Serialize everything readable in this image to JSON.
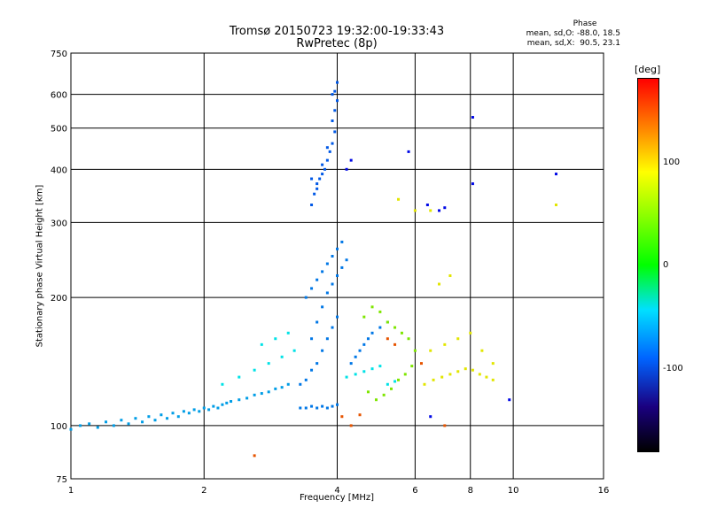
{
  "chart_data": {
    "type": "scatter",
    "title": "Tromsø 20150723 19:32:00-19:33:43",
    "subtitle": "RwPretec (8p)",
    "xlabel": "Frequency [MHz]",
    "ylabel": "Stationary phase Virtual Height [km]",
    "x_scale": "log",
    "y_scale": "log",
    "xlim": [
      1,
      16
    ],
    "ylim": [
      75,
      750
    ],
    "x_ticks": [
      "1",
      "2",
      "4",
      "6",
      "8",
      "10",
      "16"
    ],
    "x_tick_values": [
      1,
      2,
      4,
      6,
      8,
      10,
      16
    ],
    "y_ticks": [
      "75",
      "100",
      "200",
      "300",
      "400",
      "500",
      "600",
      "750"
    ],
    "y_tick_values": [
      75,
      100,
      200,
      300,
      400,
      500,
      600,
      750
    ],
    "grid": true,
    "colorbar": {
      "label": "[deg]",
      "ticks": [
        "100",
        "0",
        "-100"
      ],
      "range": [
        -180,
        180
      ]
    },
    "phase_stats": {
      "title": "Phase",
      "line1": "mean, sd,O: -88.0, 18.5",
      "line2": "mean, sd,X:  90.5, 23.1"
    },
    "series": [
      {
        "phase": -95,
        "points": [
          [
            1.0,
            98
          ],
          [
            1.05,
            100
          ],
          [
            1.1,
            101
          ],
          [
            1.15,
            99
          ],
          [
            1.2,
            102
          ],
          [
            1.25,
            100
          ],
          [
            1.3,
            103
          ],
          [
            1.35,
            101
          ],
          [
            1.4,
            104
          ],
          [
            1.45,
            102
          ],
          [
            1.5,
            105
          ],
          [
            1.55,
            103
          ],
          [
            1.6,
            106
          ],
          [
            1.65,
            104
          ],
          [
            1.7,
            107
          ],
          [
            1.75,
            105
          ],
          [
            1.8,
            108
          ],
          [
            1.85,
            107
          ],
          [
            1.9,
            109
          ],
          [
            1.95,
            108
          ],
          [
            2.0,
            110
          ],
          [
            2.05,
            109
          ],
          [
            2.1,
            111
          ],
          [
            2.15,
            110
          ],
          [
            2.2,
            112
          ],
          [
            2.25,
            113
          ],
          [
            2.3,
            114
          ],
          [
            2.4,
            115
          ],
          [
            2.5,
            116
          ],
          [
            2.6,
            118
          ],
          [
            2.7,
            119
          ],
          [
            2.8,
            120
          ],
          [
            2.9,
            122
          ],
          [
            3.0,
            123
          ],
          [
            3.1,
            125
          ]
        ]
      },
      {
        "phase": -110,
        "points": [
          [
            3.3,
            110
          ],
          [
            3.4,
            110
          ],
          [
            3.5,
            111
          ],
          [
            3.6,
            110
          ],
          [
            3.7,
            111
          ],
          [
            3.8,
            110
          ],
          [
            3.9,
            111
          ],
          [
            4.0,
            112
          ],
          [
            3.3,
            125
          ],
          [
            3.4,
            128
          ],
          [
            3.5,
            135
          ],
          [
            3.6,
            140
          ],
          [
            3.7,
            150
          ],
          [
            3.8,
            160
          ],
          [
            3.9,
            170
          ],
          [
            4.0,
            180
          ],
          [
            3.4,
            200
          ],
          [
            3.5,
            210
          ],
          [
            3.6,
            220
          ],
          [
            3.7,
            230
          ],
          [
            3.8,
            240
          ],
          [
            3.9,
            250
          ],
          [
            4.0,
            260
          ],
          [
            4.1,
            270
          ],
          [
            3.5,
            160
          ],
          [
            3.6,
            175
          ],
          [
            3.7,
            190
          ],
          [
            3.8,
            205
          ],
          [
            3.9,
            215
          ],
          [
            4.0,
            225
          ],
          [
            4.1,
            235
          ],
          [
            4.2,
            245
          ],
          [
            4.3,
            140
          ],
          [
            4.4,
            145
          ],
          [
            4.5,
            150
          ],
          [
            4.6,
            155
          ],
          [
            4.7,
            160
          ],
          [
            4.8,
            165
          ],
          [
            5.0,
            170
          ],
          [
            5.2,
            175
          ]
        ]
      },
      {
        "phase": -120,
        "points": [
          [
            3.5,
            330
          ],
          [
            3.55,
            350
          ],
          [
            3.6,
            370
          ],
          [
            3.65,
            380
          ],
          [
            3.7,
            390
          ],
          [
            3.75,
            400
          ],
          [
            3.8,
            420
          ],
          [
            3.85,
            440
          ],
          [
            3.9,
            460
          ],
          [
            3.95,
            490
          ],
          [
            3.9,
            520
          ],
          [
            3.95,
            550
          ],
          [
            4.0,
            580
          ],
          [
            3.95,
            610
          ],
          [
            4.0,
            640
          ],
          [
            3.9,
            600
          ],
          [
            3.8,
            450
          ],
          [
            3.7,
            410
          ],
          [
            3.6,
            360
          ],
          [
            3.5,
            380
          ]
        ]
      },
      {
        "phase": -70,
        "points": [
          [
            2.2,
            125
          ],
          [
            2.4,
            130
          ],
          [
            2.6,
            135
          ],
          [
            2.8,
            140
          ],
          [
            3.0,
            145
          ],
          [
            3.2,
            150
          ],
          [
            2.7,
            155
          ],
          [
            2.9,
            160
          ],
          [
            3.1,
            165
          ],
          [
            4.2,
            130
          ],
          [
            4.4,
            132
          ],
          [
            4.6,
            134
          ],
          [
            4.8,
            136
          ],
          [
            5.0,
            138
          ],
          [
            5.2,
            125
          ],
          [
            5.4,
            127
          ]
        ]
      },
      {
        "phase": 60,
        "points": [
          [
            4.6,
            180
          ],
          [
            4.8,
            190
          ],
          [
            5.0,
            185
          ],
          [
            5.2,
            175
          ],
          [
            5.4,
            170
          ],
          [
            5.6,
            165
          ],
          [
            5.8,
            160
          ],
          [
            6.0,
            150
          ],
          [
            4.7,
            120
          ],
          [
            4.9,
            115
          ],
          [
            5.1,
            118
          ],
          [
            5.3,
            122
          ],
          [
            5.5,
            128
          ],
          [
            5.7,
            132
          ],
          [
            5.9,
            138
          ]
        ]
      },
      {
        "phase": 95,
        "points": [
          [
            6.3,
            125
          ],
          [
            6.6,
            128
          ],
          [
            6.9,
            130
          ],
          [
            7.2,
            132
          ],
          [
            7.5,
            134
          ],
          [
            7.8,
            136
          ],
          [
            8.1,
            135
          ],
          [
            8.4,
            132
          ],
          [
            8.7,
            130
          ],
          [
            9.0,
            128
          ],
          [
            6.5,
            150
          ],
          [
            7.0,
            155
          ],
          [
            7.5,
            160
          ],
          [
            8.0,
            165
          ],
          [
            8.5,
            150
          ],
          [
            9.0,
            140
          ],
          [
            5.5,
            340
          ],
          [
            6.0,
            320
          ],
          [
            6.5,
            320
          ],
          [
            6.8,
            215
          ],
          [
            7.2,
            225
          ],
          [
            12.5,
            330
          ]
        ]
      },
      {
        "phase": 150,
        "points": [
          [
            4.1,
            105
          ],
          [
            4.3,
            100
          ],
          [
            4.5,
            106
          ],
          [
            5.2,
            160
          ],
          [
            5.4,
            155
          ],
          [
            6.2,
            140
          ],
          [
            7.0,
            100
          ],
          [
            2.6,
            85
          ]
        ]
      },
      {
        "phase": -150,
        "points": [
          [
            4.2,
            400
          ],
          [
            4.3,
            420
          ],
          [
            6.4,
            330
          ],
          [
            6.8,
            320
          ],
          [
            7.0,
            325
          ],
          [
            8.1,
            530
          ],
          [
            8.1,
            370
          ],
          [
            9.8,
            115
          ],
          [
            12.5,
            390
          ],
          [
            6.5,
            105
          ],
          [
            5.8,
            440
          ]
        ]
      }
    ]
  }
}
